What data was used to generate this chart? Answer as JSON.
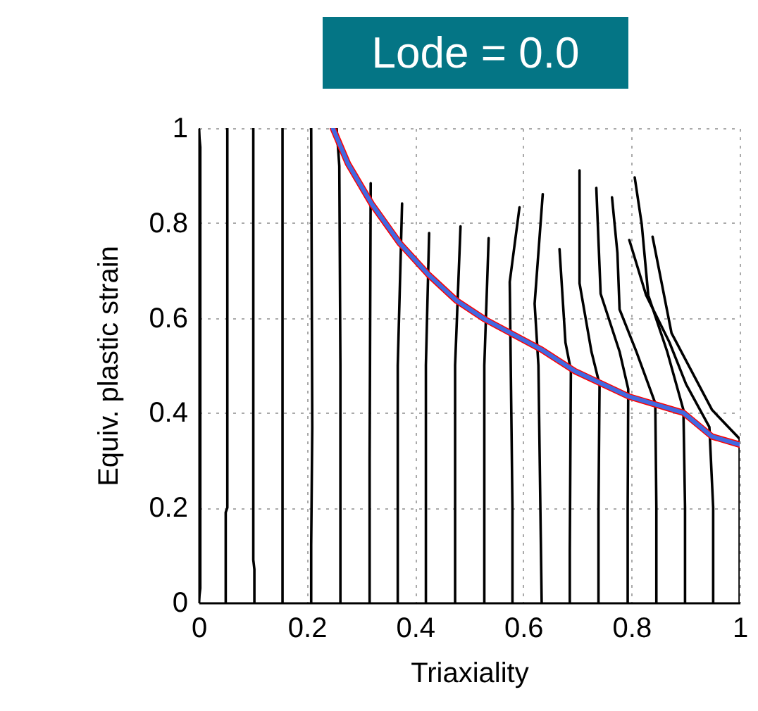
{
  "chart_data": {
    "type": "line",
    "title": "Lode = 0.0",
    "xlabel": "Triaxiality",
    "ylabel": "Equiv. plastic strain",
    "xlim": [
      0,
      1
    ],
    "ylim": [
      0,
      1
    ],
    "xticks": [
      0,
      0.2,
      0.4,
      0.6,
      0.8,
      1
    ],
    "yticks": [
      0,
      0.2,
      0.4,
      0.6,
      0.8,
      1
    ],
    "grid": true,
    "line_style": "solid",
    "marker": "none",
    "series": [
      {
        "color": "#000000",
        "x": [
          0,
          0.003,
          0.003,
          0
        ],
        "values": [
          0,
          0.03,
          0.96,
          1
        ]
      },
      {
        "color": "#000000",
        "x": [
          0.05,
          0.05,
          0.053,
          0.053
        ],
        "values": [
          0,
          0.19,
          0.2,
          1
        ]
      },
      {
        "color": "#000000",
        "x": [
          0.103,
          0.103,
          0.101,
          0.101
        ],
        "values": [
          0,
          0.07,
          0.09,
          1
        ]
      },
      {
        "color": "#000000",
        "x": [
          0.155,
          0.155,
          0.155
        ],
        "values": [
          0,
          0.5,
          1
        ]
      },
      {
        "color": "#000000",
        "x": [
          0.208,
          0.208,
          0.21,
          0.208
        ],
        "values": [
          0,
          0.12,
          0.37,
          1
        ]
      },
      {
        "color": "#000000",
        "x": [
          0.262,
          0.262,
          0.26,
          0.255
        ],
        "values": [
          0,
          0.5,
          0.92,
          1
        ]
      },
      {
        "color": "#000000",
        "x": [
          0.316,
          0.316,
          0.318
        ],
        "values": [
          0,
          0.3,
          0.884
        ]
      },
      {
        "color": "#000000",
        "x": [
          0.368,
          0.368,
          0.376
        ],
        "values": [
          0,
          0.5,
          0.841
        ]
      },
      {
        "color": "#000000",
        "x": [
          0.42,
          0.42,
          0.426
        ],
        "values": [
          0,
          0.5,
          0.779
        ]
      },
      {
        "color": "#000000",
        "x": [
          0.474,
          0.474,
          0.484
        ],
        "values": [
          0,
          0.5,
          0.793
        ]
      },
      {
        "color": "#000000",
        "x": [
          0.528,
          0.528,
          0.536
        ],
        "values": [
          0,
          0.5,
          0.768
        ]
      },
      {
        "color": "#000000",
        "x": [
          0.58,
          0.58,
          0.575,
          0.593
        ],
        "values": [
          0,
          0.2,
          0.676,
          0.833
        ]
      },
      {
        "color": "#000000",
        "x": [
          0.634,
          0.628,
          0.621,
          0.636
        ],
        "values": [
          0,
          0.5,
          0.63,
          0.861
        ]
      },
      {
        "color": "#000000",
        "x": [
          0.686,
          0.686,
          0.688,
          0.678,
          0.667
        ],
        "values": [
          0,
          0.11,
          0.49,
          0.548,
          0.745
        ]
      },
      {
        "color": "#000000",
        "x": [
          0.739,
          0.739,
          0.741,
          0.726,
          0.704,
          0.704
        ],
        "values": [
          0,
          0.2,
          0.46,
          0.529,
          0.673,
          0.911
        ]
      },
      {
        "color": "#000000",
        "x": [
          0.793,
          0.793,
          0.794,
          0.778,
          0.743,
          0.735
        ],
        "values": [
          0,
          0.2,
          0.45,
          0.529,
          0.651,
          0.874
        ]
      },
      {
        "color": "#000000",
        "x": [
          0.846,
          0.846,
          0.844,
          0.809,
          0.778,
          0.774,
          0.764
        ],
        "values": [
          0,
          0.2,
          0.42,
          0.529,
          0.618,
          0.737,
          0.854
        ]
      },
      {
        "color": "#000000",
        "x": [
          0.899,
          0.899,
          0.896,
          0.866,
          0.831,
          0.819,
          0.806
        ],
        "values": [
          0,
          0.2,
          0.406,
          0.529,
          0.648,
          0.797,
          0.896
        ]
      },
      {
        "color": "#000000",
        "x": [
          0.951,
          0.951,
          0.944,
          0.901,
          0.87,
          0.827,
          0.796
        ],
        "values": [
          0,
          0.2,
          0.37,
          0.46,
          0.549,
          0.648,
          0.764
        ]
      },
      {
        "color": "#000000",
        "x": [
          1,
          1,
          0.949,
          0.874,
          0.839
        ],
        "values": [
          0,
          0.345,
          0.406,
          0.568,
          0.771
        ]
      },
      {
        "color": "#ff0000",
        "x": [
          0.248,
          0.276,
          0.32,
          0.372,
          0.424,
          0.477,
          0.529,
          0.634,
          0.695,
          0.796,
          0.896,
          0.949,
          1
        ],
        "values": [
          1,
          0.925,
          0.84,
          0.757,
          0.692,
          0.636,
          0.597,
          0.533,
          0.488,
          0.434,
          0.4,
          0.35,
          0.333
        ]
      },
      {
        "color": "#4169e1",
        "x": [
          0.248,
          0.276,
          0.32,
          0.372,
          0.424,
          0.477,
          0.529,
          0.634,
          0.695,
          0.796,
          0.896,
          0.949,
          1
        ],
        "values": [
          1,
          0.925,
          0.84,
          0.757,
          0.692,
          0.636,
          0.597,
          0.533,
          0.488,
          0.434,
          0.4,
          0.35,
          0.333
        ]
      }
    ]
  }
}
